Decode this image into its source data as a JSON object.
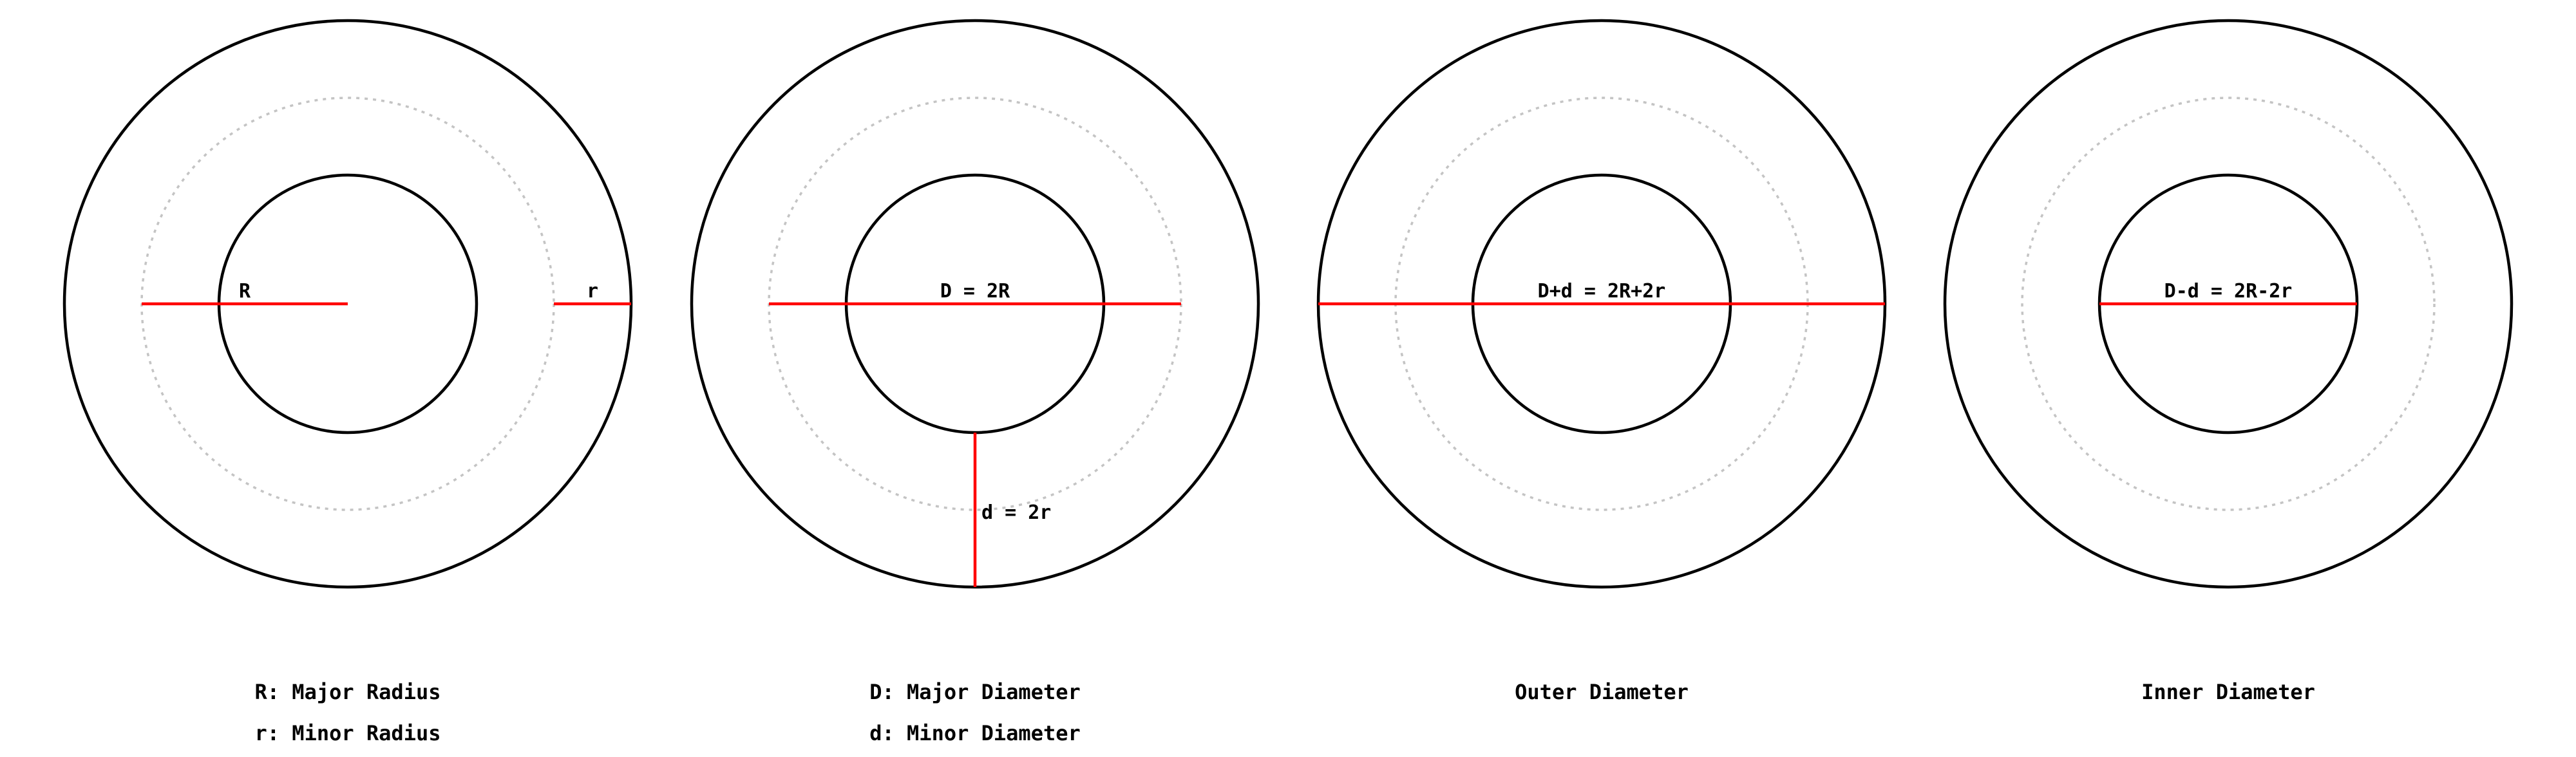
{
  "colors": {
    "ring": "#000000",
    "midline": "#c4c4c4",
    "measure": "#ff0000",
    "background": "#ffffff"
  },
  "panels": [
    {
      "labels": {
        "major": "R",
        "minor": "r"
      },
      "captions": [
        "R: Major Radius",
        "r: Minor Radius"
      ]
    },
    {
      "labels": {
        "major": "D = 2R",
        "minor": "d = 2r"
      },
      "captions": [
        "D: Major Diameter",
        "d: Minor Diameter"
      ]
    },
    {
      "labels": {
        "major": "D+d = 2R+2r"
      },
      "captions": [
        "Outer Diameter"
      ]
    },
    {
      "labels": {
        "major": "D-d = 2R-2r"
      },
      "captions": [
        "Inner Diameter"
      ]
    }
  ]
}
